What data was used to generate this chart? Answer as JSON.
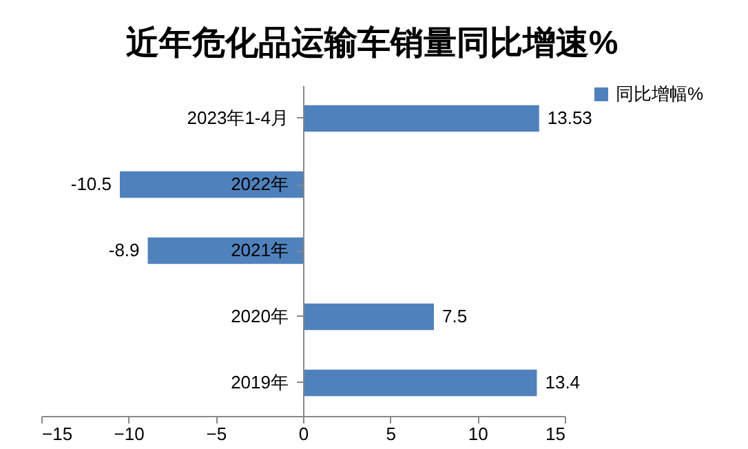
{
  "chart_data": {
    "type": "bar",
    "orientation": "horizontal",
    "title": "近年危化品运输车销量同比增速%",
    "categories": [
      "2023年1-4月",
      "2022年",
      "2021年",
      "2020年",
      "2019年"
    ],
    "series": [
      {
        "name": "同比增幅%",
        "color": "#4f81bd",
        "values": [
          13.53,
          -10.5,
          -8.9,
          7.5,
          13.4
        ]
      }
    ],
    "xlim": [
      -15,
      15
    ],
    "xticks": [
      -15,
      -10,
      -5,
      0,
      5,
      10,
      15
    ],
    "grid": false,
    "legend": "right",
    "data_labels": true
  }
}
